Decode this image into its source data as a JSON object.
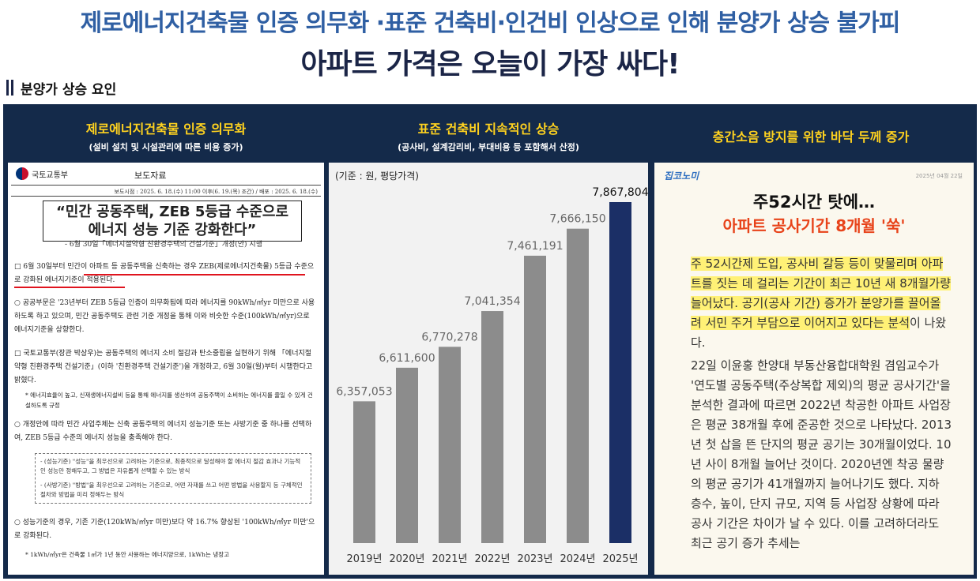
{
  "headline": {
    "line1": "제로에너지건축물 인증 의무화 ·표준 건축비·인건비 인상으로 인해 분양가 상승 불가피",
    "line2": "아파트 가격은 오늘이 가장 싸다!"
  },
  "section_label": "분양가 상승 요인",
  "columns": [
    {
      "title": "제로에너지건축물 인증 의무화",
      "subtitle": "(설비 설치 및 시설관리에 따른 비용 증가)"
    },
    {
      "title": "표준 건축비 지속적인 상승",
      "subtitle": "(공사비, 설계감리비, 부대비용 등 포함해서 산정)"
    },
    {
      "title": "층간소음 방지를 위한 바닥 두께 증가",
      "subtitle": ""
    }
  ],
  "document": {
    "ministry": "국토교통부",
    "doc_type": "보도자료",
    "dateline": "보도시점 : 2025. 6. 18.(수) 11:00 이후(6. 19.(목) 조간) / 배포 : 2025. 6. 18.(수)",
    "title_line1": "“민간 공동주택, ZEB 5등급 수준으로",
    "title_line2": "에너지 성능 기준 강화한다”",
    "subtitle": "- 6월 30일「에너지절약형 친환경주택의 건설기준」개정(안) 시행",
    "para1": "□ 6월 30일부터 민간이 아파트 등 공동주택을 신축하는 경우 ZEB(제로에너지건축물) 5등급 수준으로 강화된 에너지기준이 적용된다.",
    "para2": "○ 공공부문은 '23년부터 ZEB 5등급 인증이 의무화됨에 따라 에너지를 90kWh/㎡yr 미만으로 사용하도록 하고 있으며, 민간 공동주택도 관련 기준 개정을 통해 이와 비슷한 수준(100kWh/㎡yr)으로 에너지기준을 상향한다.",
    "para3": "□ 국토교통부(장관 박상우)는 공동주택의 에너지 소비 절감과 탄소중립을 실현하기 위해 「에너지절약형 친환경주택 건설기준」(이하 '친환경주택 건설기준')을 개정하고, 6월 30일(월)부터 시행한다고 밝혔다.",
    "note1": "* 에너지효율이 높고, 신재생에너지설비 등을 통해 에너지를 생산하여 공동주택이 소비하는 에너지를 줄일 수 있게 건설하도록 규정",
    "para4": "○ 개정안에 따라 민간 사업주체는 신축 공동주택의 에너지 성능기준 또는 사방기준 중 하나를 선택하여, ZEB 5등급 수준의 에너지 성능을 충족해야 한다.",
    "box1": "- (성능기준) \"성능\"을 최우선으로 고려하는 기준으로, 최종적으로 달성해야 할 에너지 절감 효과나 기능적인 성능만 정해두고, 그 방법은 자유롭게 선택할 수 있는 방식",
    "box2": "- (사방기준) \"방법\"을 최우선으로 고려하는 기준으로, 어떤 자재를 쓰고 어떤 방법을 사용할지 등 구체적인 절차와 방법을 미리 정해두는 방식",
    "para5": "○ 성능기준의 경우, 기존 기준(120kWh/㎡yr 미만)보다 약 16.7% 향상된 '100kWh/㎡yr 미만'으로 강화된다.",
    "note2": "* 1kWh/㎡yr은 건축물 1㎡가 1년 동안 사용하는 에너지양으로, 1kWh는 냉장고"
  },
  "chart_data": {
    "type": "bar",
    "unit_label": "(기준 : 원, 평당가격)",
    "categories": [
      "2019년",
      "2020년",
      "2021년",
      "2022년",
      "2023년",
      "2024년",
      "2025년"
    ],
    "values": [
      6357053,
      6611600,
      6770278,
      7041354,
      7461191,
      7666150,
      7867804
    ],
    "value_labels": [
      "6,357,053",
      "6,611,600",
      "6,770,278",
      "7,041,354",
      "7,461,191",
      "7,666,150",
      "7,867,804"
    ],
    "colors": {
      "default": "#8c8c8c",
      "highlight": "#1b2f66"
    },
    "highlight_index": 6,
    "title": "",
    "xlabel": "",
    "ylabel": ""
  },
  "article": {
    "logo": "집코노미",
    "date": "2025년 04월 22일",
    "headline1": "주52시간 탓에…",
    "headline2": "아파트 공사기간 8개월 '쑥'",
    "body_highlight": "주 52시간제 도입, 공사비 갈등 등이 맞물리며 아파트를 짓는 데 걸리는 기간이 최근 10년 새 8개월가량 늘어났다. 공기(공사 기간) 증가가 분양가를 끌어올려 서민 주거 부담으로 이어지고 있다는 분석",
    "body_rest": "이 나왔다.",
    "body2": "22일 이윤홍 한양대 부동산융합대학원 겸임교수가 '연도별 공동주택(주상복합 제외)의 평균 공사기간'을 분석한 결과에 따르면 2022년 착공한 아파트 사업장은 평균 38개월 후에 준공한 것으로 나타났다. 2013년 첫 삽을 뜬 단지의 평균 공기는 30개월이었다. 10년 사이 8개월 늘어난 것이다. 2020년엔 착공 물량의 평균 공기가 41개월까지 늘어나기도 했다. 지하 층수, 높이, 단지 규모, 지역 등 사업장 상황에 따라 공사 기간은 차이가 날 수 있다. 이를 고려하더라도 최근 공기 증가 추세는"
  }
}
